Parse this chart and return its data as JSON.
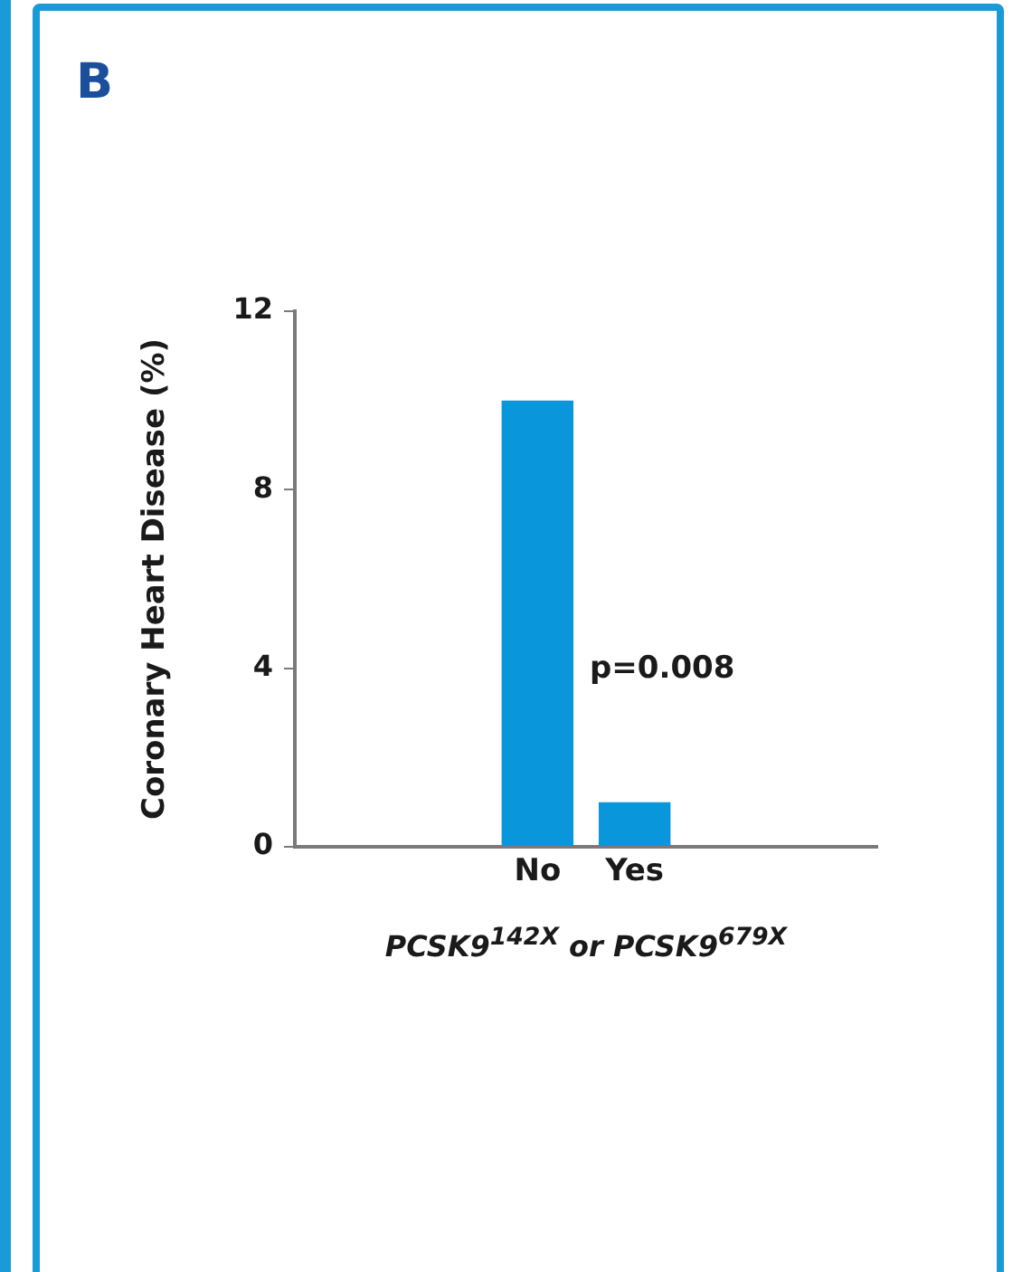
{
  "chart_data": {
    "type": "bar",
    "title": "B",
    "ylabel": "Coronary Heart Disease (%)",
    "xlabel": "PCSK9$^{142X}$ or PCSK9$^{679X}$",
    "categories": [
      "No",
      "Yes"
    ],
    "values": [
      10,
      1
    ],
    "color": "#0a96da",
    "ylim": [
      0,
      12
    ],
    "yticks": [
      0,
      4,
      8,
      12
    ],
    "grid": false,
    "legend": false,
    "annotations": [
      "p=0.008"
    ]
  }
}
